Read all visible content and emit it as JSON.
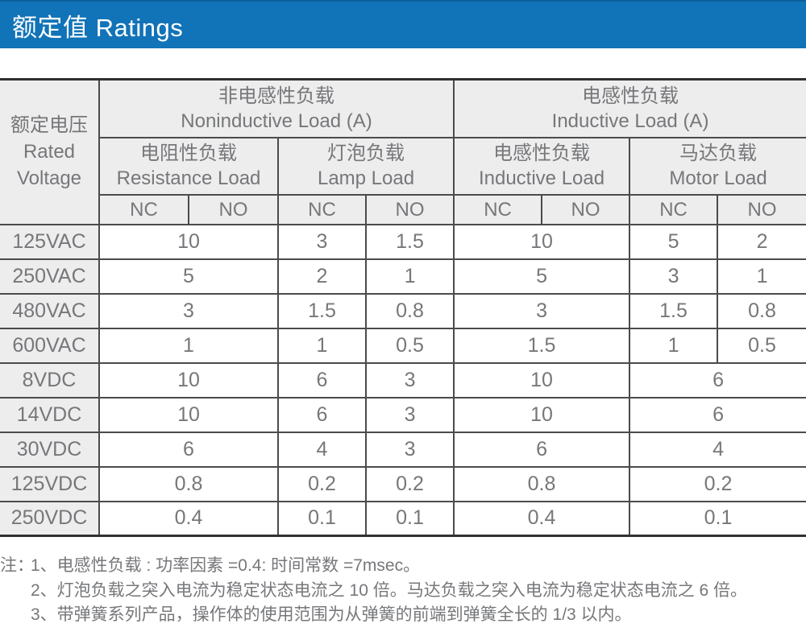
{
  "title_bar": {
    "text": "额定值 Ratings"
  },
  "colors": {
    "titlebar_bg": "#1173b8",
    "titlebar_fg": "#ffffff",
    "header_bg": "#ededed",
    "border": "#4a4b4d",
    "outer_border": "#2f3032",
    "text": "#76777a"
  },
  "table": {
    "header": {
      "rated_voltage": {
        "zh": "额定电压",
        "en1": "Rated",
        "en2": "Voltage"
      },
      "groups": [
        {
          "zh": "非电感性负载",
          "en": "Noninductive Load (A)",
          "subgroups": [
            {
              "zh": "电阻性负载",
              "en": "Resistance Load"
            },
            {
              "zh": "灯泡负载",
              "en": "Lamp Load"
            }
          ]
        },
        {
          "zh": "电感性负载",
          "en": "Inductive Load (A)",
          "subgroups": [
            {
              "zh": "电感性负载",
              "en": "Inductive Load"
            },
            {
              "zh": "马达负载",
              "en": "Motor Load"
            }
          ]
        }
      ],
      "contact_labels": [
        "NC",
        "NO",
        "NC",
        "NO",
        "NC",
        "NO",
        "NC",
        "NO"
      ]
    },
    "rows": [
      {
        "voltage": "125VAC",
        "cells": [
          {
            "v": "10",
            "span": 2
          },
          {
            "v": "3"
          },
          {
            "v": "1.5"
          },
          {
            "v": "10",
            "span": 2
          },
          {
            "v": "5"
          },
          {
            "v": "2"
          }
        ]
      },
      {
        "voltage": "250VAC",
        "cells": [
          {
            "v": "5",
            "span": 2
          },
          {
            "v": "2"
          },
          {
            "v": "1"
          },
          {
            "v": "5",
            "span": 2
          },
          {
            "v": "3"
          },
          {
            "v": "1"
          }
        ]
      },
      {
        "voltage": "480VAC",
        "cells": [
          {
            "v": "3",
            "span": 2
          },
          {
            "v": "1.5"
          },
          {
            "v": "0.8"
          },
          {
            "v": "3",
            "span": 2
          },
          {
            "v": "1.5"
          },
          {
            "v": "0.8"
          }
        ]
      },
      {
        "voltage": "600VAC",
        "cells": [
          {
            "v": "1",
            "span": 2
          },
          {
            "v": "1"
          },
          {
            "v": "0.5"
          },
          {
            "v": "1.5",
            "span": 2
          },
          {
            "v": "1"
          },
          {
            "v": "0.5"
          }
        ]
      },
      {
        "voltage": "8VDC",
        "cells": [
          {
            "v": "10",
            "span": 2
          },
          {
            "v": "6"
          },
          {
            "v": "3"
          },
          {
            "v": "10",
            "span": 2
          },
          {
            "v": "6",
            "span": 2
          }
        ]
      },
      {
        "voltage": "14VDC",
        "cells": [
          {
            "v": "10",
            "span": 2
          },
          {
            "v": "6"
          },
          {
            "v": "3"
          },
          {
            "v": "10",
            "span": 2
          },
          {
            "v": "6",
            "span": 2
          }
        ]
      },
      {
        "voltage": "30VDC",
        "cells": [
          {
            "v": "6",
            "span": 2
          },
          {
            "v": "4"
          },
          {
            "v": "3"
          },
          {
            "v": "6",
            "span": 2
          },
          {
            "v": "4",
            "span": 2
          }
        ]
      },
      {
        "voltage": "125VDC",
        "cells": [
          {
            "v": "0.8",
            "span": 2
          },
          {
            "v": "0.2"
          },
          {
            "v": "0.2"
          },
          {
            "v": "0.8",
            "span": 2
          },
          {
            "v": "0.2",
            "span": 2
          }
        ]
      },
      {
        "voltage": "250VDC",
        "cells": [
          {
            "v": "0.4",
            "span": 2
          },
          {
            "v": "0.1"
          },
          {
            "v": "0.1"
          },
          {
            "v": "0.4",
            "span": 2
          },
          {
            "v": "0.1",
            "span": 2
          }
        ]
      }
    ]
  },
  "notes": {
    "label": "注：",
    "items": [
      "1、电感性负载 : 功率因素 =0.4: 时间常数 =7msec。",
      "2、灯泡负载之突入电流为稳定状态电流之 10 倍。马达负载之突入电流为稳定状态电流之 6 倍。",
      "3、带弹簧系列产品，操作体的使用范围为从弹簧的前端到弹簧全长的 1/3 以内。"
    ]
  }
}
